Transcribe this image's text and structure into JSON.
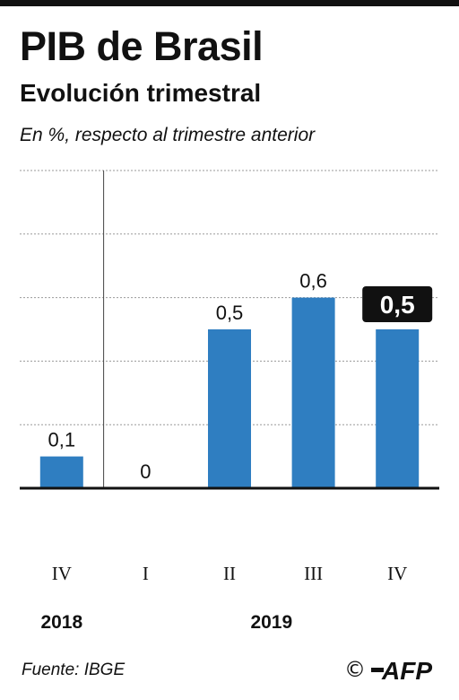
{
  "header": {
    "title": "PIB de Brasil",
    "subtitle": "Evolución trimestral",
    "unit_note": "En %, respecto al trimestre anterior"
  },
  "footer": {
    "source": "Fuente: IBGE",
    "copyright_symbol": "©",
    "logo": "AFP"
  },
  "colors": {
    "bar": "#2f7ec1",
    "highlight_label_bg": "#111111",
    "highlight_label_text": "#ffffff",
    "grid": "#9a9a9a",
    "axis": "#111111"
  },
  "chart_data": {
    "type": "bar",
    "categories": [
      "IV",
      "I",
      "II",
      "III",
      "IV"
    ],
    "values": [
      0.1,
      0,
      0.5,
      0.6,
      0.5
    ],
    "value_labels": [
      "0,1",
      "0",
      "0,5",
      "0,6",
      "0,5"
    ],
    "year_groups": [
      {
        "label": "2018",
        "categories": [
          "IV"
        ]
      },
      {
        "label": "2019",
        "categories": [
          "I",
          "II",
          "III",
          "IV"
        ]
      }
    ],
    "highlighted_index": 4,
    "title": "PIB de Brasil",
    "subtitle": "Evolución trimestral",
    "ylabel": "En %, respecto al trimestre anterior",
    "ylim": [
      0,
      1
    ],
    "grid": true,
    "legend": "none"
  }
}
